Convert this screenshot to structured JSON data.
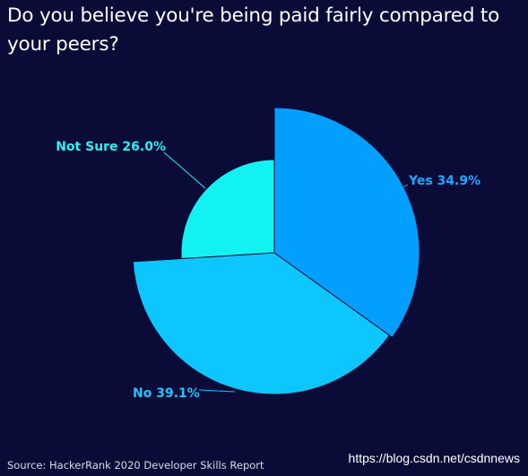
{
  "title": "Do you believe you're being paid fairly compared to your peers?",
  "source": "Source: HackerRank 2020 Developer Skills Report",
  "watermark": "https://blog.csdn.net/csdnnews",
  "chart_data": {
    "type": "pie",
    "title": "Do you believe you're being paid fairly compared to your peers?",
    "slices": [
      {
        "label": "Yes",
        "value": 34.9,
        "display": "Yes 34.9%",
        "color": "#039ffe",
        "label_color": "#1ea6ff"
      },
      {
        "label": "No",
        "value": 39.1,
        "display": "No 39.1%",
        "color": "#0dc6fe",
        "label_color": "#22c4ff"
      },
      {
        "label": "Not Sure",
        "value": 26.0,
        "display": "Not Sure 26.0%",
        "color": "#13f2f2",
        "label_color": "#2af2f2"
      }
    ],
    "variable_radius": true,
    "legend": "none"
  }
}
